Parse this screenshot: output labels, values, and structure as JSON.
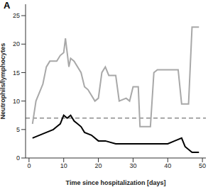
{
  "chart_data": {
    "type": "line",
    "panel_label": "A",
    "x_label": "Time since hospitalization [days]",
    "y_label": "Neutrophils/lymphocytes",
    "xlim": [
      -1,
      51
    ],
    "xticks": [
      0,
      10,
      20,
      30,
      40,
      50
    ],
    "ylim": [
      0,
      27
    ],
    "yticks": [
      0,
      5,
      10,
      15,
      20,
      25
    ],
    "threshold": 7,
    "grid": false,
    "series": [
      {
        "color": "#a8a8a8",
        "line_style": "solid",
        "x": [
          1,
          2,
          4,
          5,
          6,
          8,
          9,
          10,
          10.5,
          11.5,
          12,
          13,
          15,
          16,
          17,
          19,
          20,
          21,
          22,
          23,
          25,
          26,
          28,
          29,
          30,
          31.5,
          32,
          35,
          36,
          37,
          43,
          44,
          46,
          47,
          49
        ],
        "values": [
          6,
          10,
          13,
          16,
          17,
          17,
          18,
          18.5,
          21,
          16,
          17.5,
          17,
          15,
          12.5,
          12,
          10,
          10.5,
          15,
          16,
          14.5,
          14.5,
          10,
          10.5,
          10,
          12.5,
          12.5,
          5.5,
          5.5,
          15,
          15.5,
          15.5,
          9.5,
          9.5,
          23,
          23
        ]
      },
      {
        "color": "#000000",
        "line_style": "solid",
        "x": [
          1,
          3,
          5,
          7,
          8,
          9,
          10,
          11,
          12,
          13,
          14,
          15,
          16,
          18,
          20,
          22,
          25,
          30,
          33,
          35,
          40,
          42,
          44,
          45,
          47,
          49
        ],
        "values": [
          3.5,
          4,
          4.5,
          5,
          5.5,
          6,
          7.5,
          7,
          7.5,
          6.5,
          6,
          5.5,
          4.5,
          4,
          3,
          3,
          2.5,
          2.5,
          2.5,
          2.5,
          2.5,
          3,
          3.5,
          2,
          1,
          1
        ]
      }
    ]
  }
}
